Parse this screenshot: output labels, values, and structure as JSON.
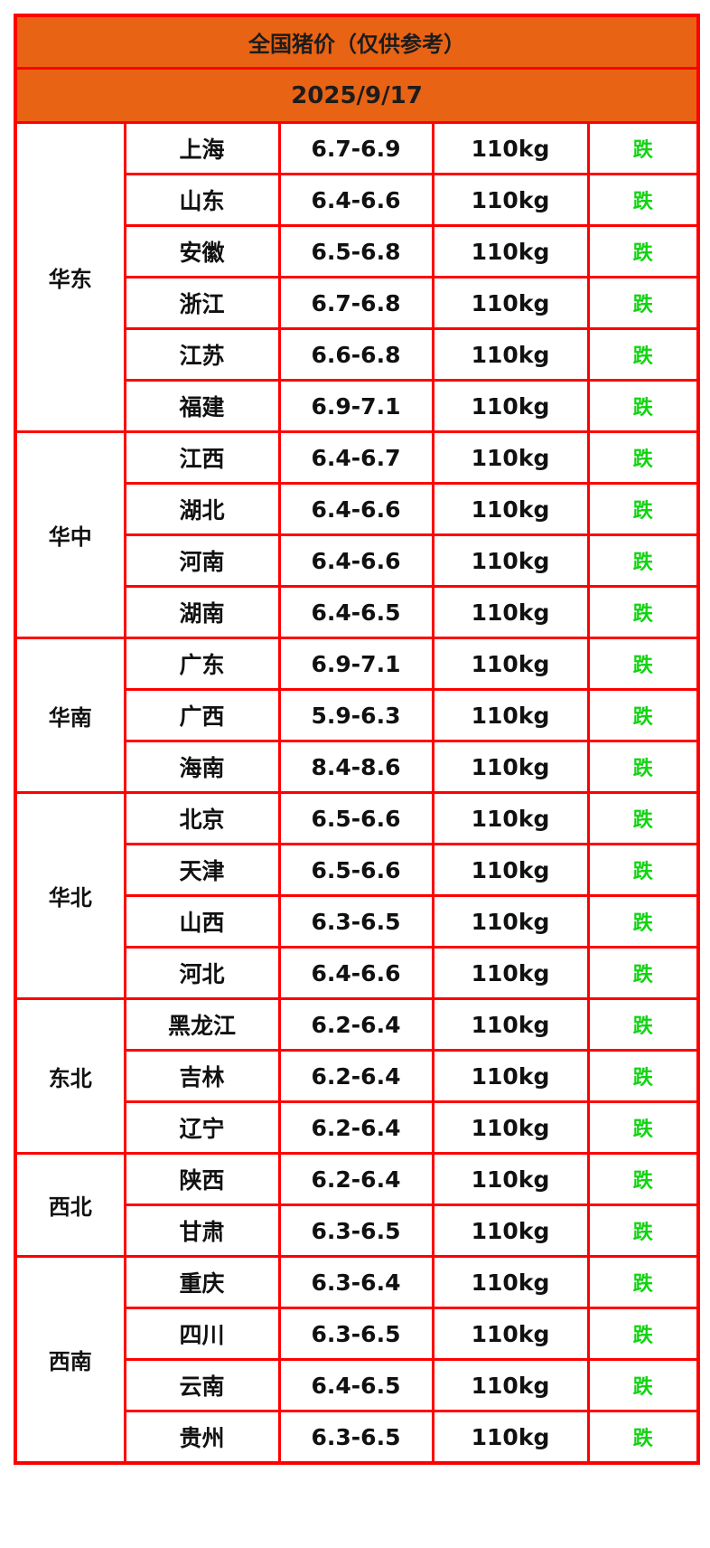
{
  "title": "全国猪价（仅供参考）",
  "date": "2025/9/17",
  "colors": {
    "header_bg": "#e96314",
    "border": "#ff0000",
    "trend_down": "#11d411"
  },
  "regions": [
    {
      "name": "华东",
      "rows": [
        {
          "province": "上海",
          "price": "6.7-6.9",
          "weight": "110kg",
          "trend": "跌"
        },
        {
          "province": "山东",
          "price": "6.4-6.6",
          "weight": "110kg",
          "trend": "跌"
        },
        {
          "province": "安徽",
          "price": "6.5-6.8",
          "weight": "110kg",
          "trend": "跌"
        },
        {
          "province": "浙江",
          "price": "6.7-6.8",
          "weight": "110kg",
          "trend": "跌"
        },
        {
          "province": "江苏",
          "price": "6.6-6.8",
          "weight": "110kg",
          "trend": "跌"
        },
        {
          "province": "福建",
          "price": "6.9-7.1",
          "weight": "110kg",
          "trend": "跌"
        }
      ]
    },
    {
      "name": "华中",
      "rows": [
        {
          "province": "江西",
          "price": "6.4-6.7",
          "weight": "110kg",
          "trend": "跌"
        },
        {
          "province": "湖北",
          "price": "6.4-6.6",
          "weight": "110kg",
          "trend": "跌"
        },
        {
          "province": "河南",
          "price": "6.4-6.6",
          "weight": "110kg",
          "trend": "跌"
        },
        {
          "province": "湖南",
          "price": "6.4-6.5",
          "weight": "110kg",
          "trend": "跌"
        }
      ]
    },
    {
      "name": "华南",
      "rows": [
        {
          "province": "广东",
          "price": "6.9-7.1",
          "weight": "110kg",
          "trend": "跌"
        },
        {
          "province": "广西",
          "price": "5.9-6.3",
          "weight": "110kg",
          "trend": "跌"
        },
        {
          "province": "海南",
          "price": "8.4-8.6",
          "weight": "110kg",
          "trend": "跌"
        }
      ]
    },
    {
      "name": "华北",
      "rows": [
        {
          "province": "北京",
          "price": "6.5-6.6",
          "weight": "110kg",
          "trend": "跌"
        },
        {
          "province": "天津",
          "price": "6.5-6.6",
          "weight": "110kg",
          "trend": "跌"
        },
        {
          "province": "山西",
          "price": "6.3-6.5",
          "weight": "110kg",
          "trend": "跌"
        },
        {
          "province": "河北",
          "price": "6.4-6.6",
          "weight": "110kg",
          "trend": "跌"
        }
      ]
    },
    {
      "name": "东北",
      "rows": [
        {
          "province": "黑龙江",
          "price": "6.2-6.4",
          "weight": "110kg",
          "trend": "跌"
        },
        {
          "province": "吉林",
          "price": "6.2-6.4",
          "weight": "110kg",
          "trend": "跌"
        },
        {
          "province": "辽宁",
          "price": "6.2-6.4",
          "weight": "110kg",
          "trend": "跌"
        }
      ]
    },
    {
      "name": "西北",
      "rows": [
        {
          "province": "陕西",
          "price": "6.2-6.4",
          "weight": "110kg",
          "trend": "跌"
        },
        {
          "province": "甘肃",
          "price": "6.3-6.5",
          "weight": "110kg",
          "trend": "跌"
        }
      ]
    },
    {
      "name": "西南",
      "rows": [
        {
          "province": "重庆",
          "price": "6.3-6.4",
          "weight": "110kg",
          "trend": "跌"
        },
        {
          "province": "四川",
          "price": "6.3-6.5",
          "weight": "110kg",
          "trend": "跌"
        },
        {
          "province": "云南",
          "price": "6.4-6.5",
          "weight": "110kg",
          "trend": "跌"
        },
        {
          "province": "贵州",
          "price": "6.3-6.5",
          "weight": "110kg",
          "trend": "跌"
        }
      ]
    }
  ]
}
